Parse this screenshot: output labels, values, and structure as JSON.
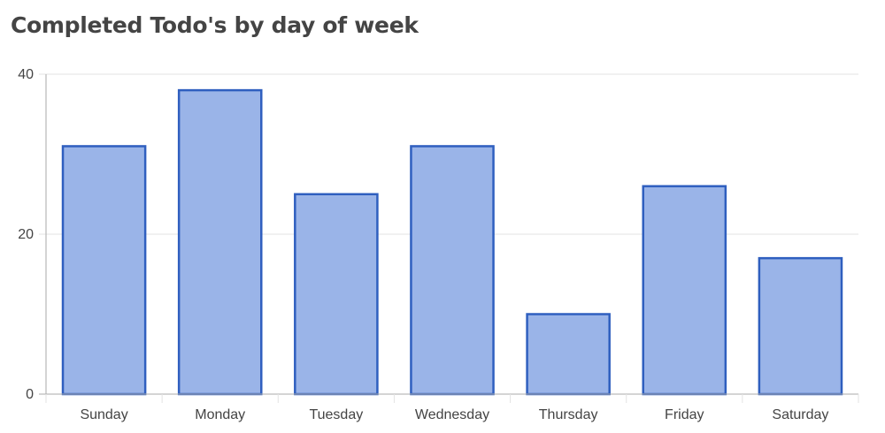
{
  "chart_data": {
    "type": "bar",
    "title": "Completed Todo's by day of week",
    "categories": [
      "Sunday",
      "Monday",
      "Tuesday",
      "Wednesday",
      "Thursday",
      "Friday",
      "Saturday"
    ],
    "values": [
      31,
      38,
      25,
      31,
      10,
      26,
      17
    ],
    "ylim": [
      0,
      40
    ],
    "yticks": [
      "0",
      "20",
      "40"
    ],
    "grid": true,
    "colors": {
      "bar_fill": "#9ab4e8",
      "bar_stroke": "#2f5fbf",
      "grid": "#e3e3e3",
      "axis": "#aaaaaa"
    }
  }
}
